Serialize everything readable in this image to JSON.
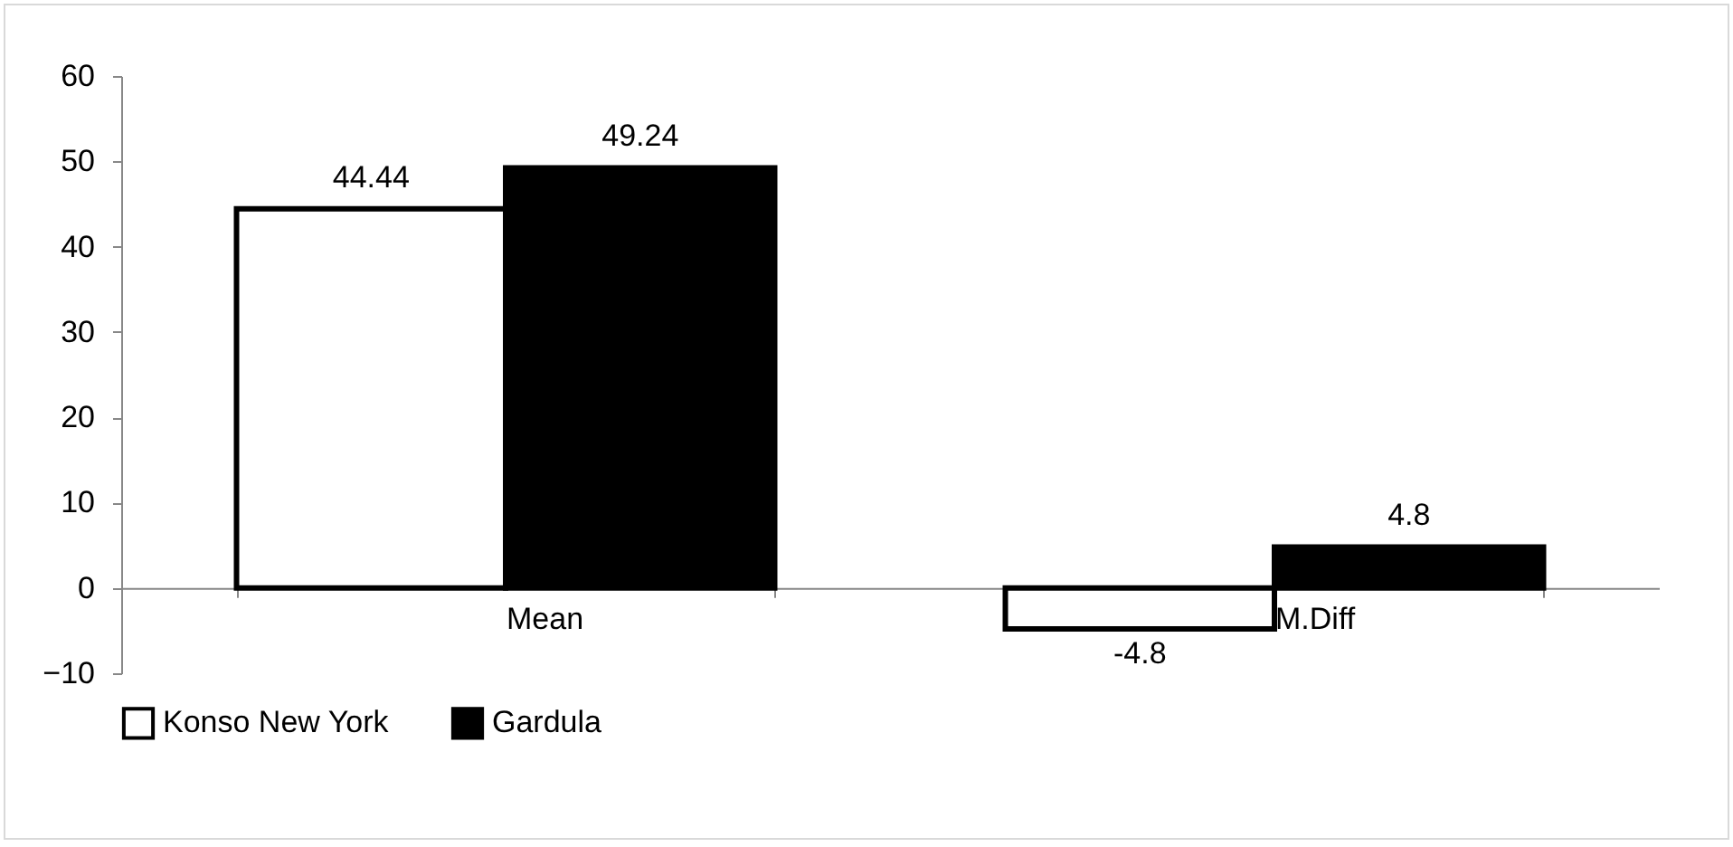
{
  "chart_data": {
    "type": "bar",
    "categories": [
      "Mean",
      "M.Diff"
    ],
    "series": [
      {
        "name": "Konso New York",
        "color": "#ffffff",
        "values": [
          44.44,
          -4.8
        ]
      },
      {
        "name": "Gardula",
        "color": "#000000",
        "values": [
          49.24,
          4.8
        ]
      }
    ],
    "ylim": [
      -10,
      60
    ],
    "yticks": [
      -10,
      0,
      10,
      20,
      30,
      40,
      50,
      60
    ],
    "grid": false,
    "legend": "bottom",
    "data_labels": true
  }
}
